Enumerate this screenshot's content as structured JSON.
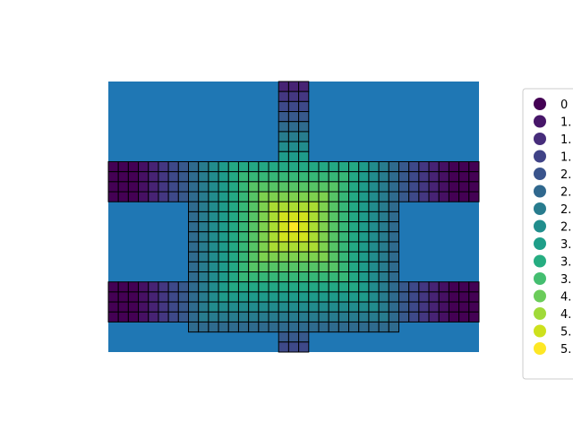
{
  "chart_data": {
    "type": "heatmap",
    "title": "",
    "xlabel": "",
    "ylabel": "",
    "grid_cols": 37,
    "grid_rows": 27,
    "background_color": "#1f77b4",
    "cell_edge_color": "#000000",
    "colormap": "viridis",
    "value_range": [
      0,
      6
    ],
    "legend_position": "right",
    "legend_entries": [
      {
        "label": "0",
        "color": "#440154"
      },
      {
        "label": "1.",
        "color": "#471669"
      },
      {
        "label": "1.",
        "color": "#472d7b"
      },
      {
        "label": "1.",
        "color": "#404387"
      },
      {
        "label": "2.",
        "color": "#3a548c"
      },
      {
        "label": "2.",
        "color": "#30688e"
      },
      {
        "label": "2.",
        "color": "#287c8e"
      },
      {
        "label": "2.",
        "color": "#218e8d"
      },
      {
        "label": "3.",
        "color": "#1f9e89"
      },
      {
        "label": "3.",
        "color": "#26ad81"
      },
      {
        "label": "3.",
        "color": "#44be70"
      },
      {
        "label": "4.",
        "color": "#6bcc5a"
      },
      {
        "label": "4.",
        "color": "#a0da39"
      },
      {
        "label": "5.",
        "color": "#cde11d"
      },
      {
        "label": "5.",
        "color": "#fde725"
      }
    ],
    "regions": [
      {
        "name": "top-stem",
        "col_range": [
          17,
          19
        ],
        "row_range": [
          0,
          7
        ]
      },
      {
        "name": "upper-bar",
        "col_range": [
          0,
          36
        ],
        "row_range": [
          8,
          11
        ]
      },
      {
        "name": "center",
        "col_range": [
          8,
          28
        ],
        "row_range": [
          8,
          24
        ]
      },
      {
        "name": "lower-bar",
        "col_range": [
          0,
          36
        ],
        "row_range": [
          20,
          23
        ]
      },
      {
        "name": "bottom-lip",
        "col_range": [
          8,
          28
        ],
        "row_range": [
          24,
          24
        ]
      },
      {
        "name": "bottom-stem",
        "col_range": [
          17,
          19
        ],
        "row_range": [
          25,
          26
        ]
      }
    ],
    "peak": {
      "col": 18,
      "row": 14,
      "value": 6
    },
    "decay_per_cell": 0.38
  }
}
